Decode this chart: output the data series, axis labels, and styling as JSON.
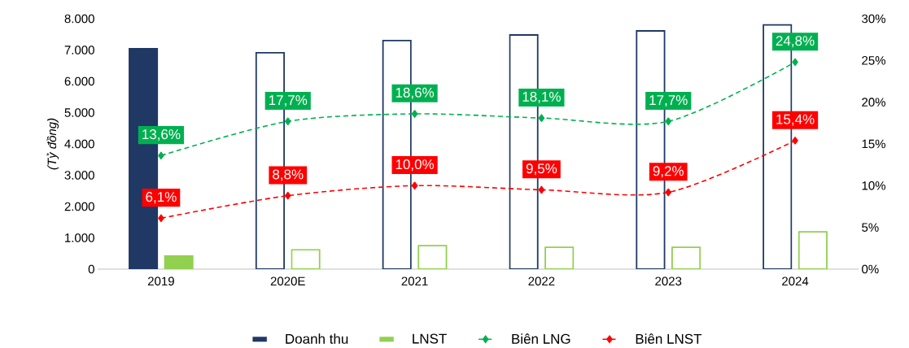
{
  "chart_data": {
    "type": "bar",
    "categories": [
      "2019",
      "2020E",
      "2021",
      "2022",
      "2023",
      "2024"
    ],
    "ylabel": "(Tỷ đồng)",
    "ylim": [
      0,
      8000
    ],
    "yticks": [
      0,
      {
        "value": 1000,
        "label": "1.000"
      },
      {
        "value": 2000,
        "label": "2.000"
      },
      {
        "value": 3000,
        "label": "3.000"
      },
      {
        "value": 4000,
        "label": "4.000"
      },
      {
        "value": 5000,
        "label": "5.000"
      },
      {
        "value": 6000,
        "label": "6.000"
      },
      {
        "value": 7000,
        "label": "7.000"
      },
      {
        "value": 8000,
        "label": "8.000"
      }
    ],
    "y2lim": [
      0,
      30
    ],
    "y2ticks": [
      {
        "value": 0,
        "label": "0%"
      },
      {
        "value": 5,
        "label": "5%"
      },
      {
        "value": 10,
        "label": "10%"
      },
      {
        "value": 15,
        "label": "15%"
      },
      {
        "value": 20,
        "label": "20%"
      },
      {
        "value": 25,
        "label": "25%"
      },
      {
        "value": 30,
        "label": "30%"
      }
    ],
    "legend": "bottom",
    "series": [
      {
        "name": "Doanh thu",
        "color": "#1f3864",
        "colors": [
          "#1f3864",
          "#ffffff",
          "#ffffff",
          "#ffffff",
          "#ffffff",
          "#ffffff"
        ],
        "values": [
          7040,
          6910,
          7300,
          7480,
          7610,
          7800
        ]
      },
      {
        "name": "LNST",
        "color": "#92d050",
        "colors": [
          "#92d050",
          "#ffffff",
          "#ffffff",
          "#ffffff",
          "#ffffff",
          "#ffffff"
        ],
        "values": [
          420,
          620,
          750,
          700,
          700,
          1190
        ]
      },
      {
        "name": "Biên LNG",
        "type": "line",
        "axis": "y2",
        "color": "#00b050",
        "marker": "diamond",
        "line_style": "dashed",
        "values": [
          13.6,
          17.7,
          18.6,
          18.1,
          17.7,
          24.8
        ],
        "value_labels": [
          "13,6%",
          "17,7%",
          "18,6%",
          "18,1%",
          "17,7%",
          "24,8%"
        ]
      },
      {
        "name": "Biên LNST",
        "type": "line",
        "axis": "y2",
        "color": "#ff0000",
        "marker": "diamond",
        "line_style": "dashed",
        "values": [
          6.1,
          8.8,
          10.0,
          9.5,
          9.2,
          15.4
        ],
        "value_labels": [
          "6,1%",
          "8,8%",
          "10,0%",
          "9,5%",
          "9,2%",
          "15,4%"
        ]
      }
    ]
  }
}
